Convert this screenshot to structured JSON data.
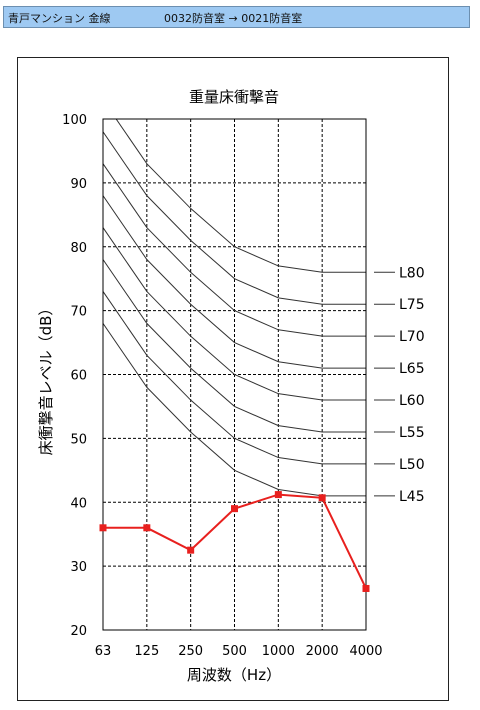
{
  "header": {
    "site": "青戸マンション  金線",
    "route": "0032防音室  →  0021防音室",
    "colors": {
      "bar": "#9ec9f2"
    }
  },
  "chart_data": {
    "type": "line",
    "title": "重量床衝撃音",
    "xlabel": "周波数（Hz）",
    "ylabel": "床衝撃音レベル（dB）",
    "categories": [
      "63",
      "125",
      "250",
      "500",
      "1000",
      "2000",
      "4000"
    ],
    "ylim": [
      20,
      100
    ],
    "yticks": [
      20,
      30,
      40,
      50,
      60,
      70,
      80,
      90,
      100
    ],
    "grid": true,
    "reference_curves": [
      {
        "name": "L80",
        "values": [
          103,
          93,
          86,
          80,
          77,
          76,
          76
        ]
      },
      {
        "name": "L75",
        "values": [
          98,
          88,
          81,
          75,
          72,
          71,
          71
        ]
      },
      {
        "name": "L70",
        "values": [
          93,
          83,
          76,
          70,
          67,
          66,
          66
        ]
      },
      {
        "name": "L65",
        "values": [
          88,
          78,
          71,
          65,
          62,
          61,
          61
        ]
      },
      {
        "name": "L60",
        "values": [
          83,
          73,
          66,
          60,
          57,
          56,
          56
        ]
      },
      {
        "name": "L55",
        "values": [
          78,
          68,
          61,
          55,
          52,
          51,
          51
        ]
      },
      {
        "name": "L50",
        "values": [
          73,
          63,
          56,
          50,
          47,
          46,
          46
        ]
      },
      {
        "name": "L45",
        "values": [
          68,
          58,
          51,
          45,
          42,
          41,
          41
        ]
      }
    ],
    "series": [
      {
        "values": [
          36,
          36,
          32.5,
          39,
          41.2,
          40.7,
          26.5
        ],
        "color": "#e8201e"
      }
    ]
  }
}
